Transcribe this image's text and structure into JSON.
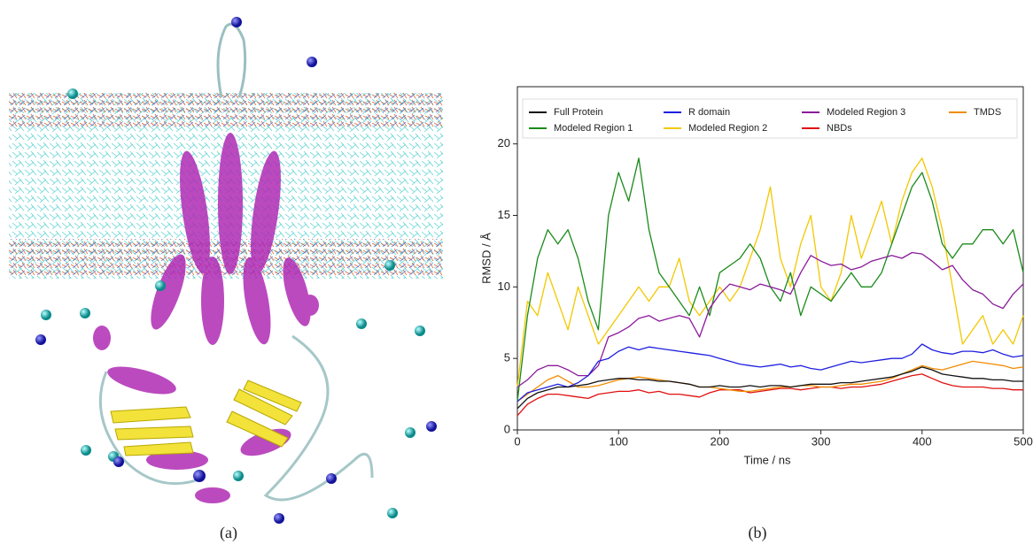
{
  "captions": [
    "(a)",
    "(b)"
  ],
  "chart_data": {
    "type": "line",
    "x_label": "Time / ns",
    "y_label": "RMSD / Å",
    "xlim": [
      0,
      500
    ],
    "ylim": [
      0,
      24
    ],
    "xticks": [
      0,
      100,
      200,
      300,
      400,
      500
    ],
    "yticks": [
      0,
      5,
      10,
      15,
      20
    ],
    "x": [
      0,
      10,
      20,
      30,
      40,
      50,
      60,
      70,
      80,
      90,
      100,
      110,
      120,
      130,
      140,
      150,
      160,
      170,
      180,
      190,
      200,
      210,
      220,
      230,
      240,
      250,
      260,
      270,
      280,
      290,
      300,
      310,
      320,
      330,
      340,
      350,
      360,
      370,
      380,
      390,
      400,
      410,
      420,
      430,
      440,
      450,
      460,
      470,
      480,
      490,
      500
    ],
    "series": [
      {
        "name": "Full Protein",
        "color": "#111111",
        "values": [
          1.5,
          2.2,
          2.6,
          2.8,
          3.0,
          3.0,
          3.1,
          3.2,
          3.4,
          3.5,
          3.6,
          3.6,
          3.5,
          3.5,
          3.4,
          3.4,
          3.3,
          3.2,
          3.0,
          3.0,
          3.1,
          3.0,
          3.0,
          3.1,
          3.0,
          3.1,
          3.1,
          3.0,
          3.1,
          3.2,
          3.2,
          3.2,
          3.3,
          3.3,
          3.4,
          3.5,
          3.6,
          3.7,
          3.9,
          4.1,
          4.4,
          4.2,
          3.9,
          3.8,
          3.7,
          3.6,
          3.6,
          3.5,
          3.5,
          3.4,
          3.4
        ]
      },
      {
        "name": "R domain",
        "color": "#1f1fe0",
        "values": [
          2.0,
          2.6,
          2.8,
          3.0,
          3.2,
          3.0,
          3.3,
          3.8,
          4.8,
          5.0,
          5.5,
          5.8,
          5.6,
          5.8,
          5.7,
          5.6,
          5.5,
          5.4,
          5.3,
          5.2,
          5.0,
          4.8,
          4.6,
          4.5,
          4.4,
          4.5,
          4.6,
          4.4,
          4.5,
          4.3,
          4.2,
          4.4,
          4.6,
          4.8,
          4.7,
          4.8,
          4.9,
          5.0,
          5.0,
          5.3,
          6.0,
          5.6,
          5.4,
          5.3,
          5.5,
          5.5,
          5.4,
          5.6,
          5.3,
          5.1,
          5.2
        ]
      },
      {
        "name": "Modeled Region 3",
        "color": "#8b1a9b",
        "values": [
          3.0,
          3.5,
          4.2,
          4.5,
          4.5,
          4.2,
          3.8,
          3.8,
          4.5,
          6.5,
          6.8,
          7.2,
          7.8,
          8.0,
          7.6,
          7.8,
          8.0,
          7.8,
          6.5,
          8.5,
          9.5,
          10.2,
          10.0,
          9.8,
          10.2,
          10.0,
          9.8,
          9.5,
          11.0,
          12.2,
          11.8,
          11.5,
          11.6,
          11.2,
          11.4,
          11.8,
          12.0,
          12.2,
          12.0,
          12.4,
          12.3,
          11.8,
          11.2,
          11.5,
          10.5,
          9.8,
          9.5,
          8.8,
          8.5,
          9.5,
          10.2
        ]
      },
      {
        "name": "TMDS",
        "color": "#f08c00",
        "values": [
          2.0,
          2.5,
          3.0,
          3.5,
          3.8,
          3.4,
          3.0,
          3.0,
          3.1,
          3.3,
          3.5,
          3.6,
          3.7,
          3.6,
          3.5,
          3.4,
          3.3,
          3.2,
          3.0,
          3.0,
          2.9,
          2.8,
          2.7,
          2.7,
          2.8,
          2.9,
          3.0,
          3.0,
          3.1,
          3.1,
          3.0,
          3.0,
          3.1,
          3.2,
          3.2,
          3.3,
          3.4,
          3.6,
          3.9,
          4.2,
          4.5,
          4.3,
          4.2,
          4.4,
          4.6,
          4.8,
          4.7,
          4.6,
          4.5,
          4.3,
          4.4
        ]
      },
      {
        "name": "Modeled Region 1",
        "color": "#1a8a1a",
        "values": [
          2,
          8,
          12,
          14,
          13,
          14,
          12,
          9,
          7,
          15,
          18,
          16,
          19,
          14,
          11,
          10,
          9,
          8,
          10,
          8,
          11,
          11.5,
          12,
          13,
          12,
          10,
          9,
          11,
          8,
          10,
          9.5,
          9,
          10,
          11,
          10,
          10,
          11,
          13,
          15,
          17,
          18,
          16,
          13,
          12,
          13,
          13,
          14,
          14,
          13,
          14,
          11
        ]
      },
      {
        "name": "Modeled Region 2",
        "color": "#f2c800",
        "values": [
          3,
          9,
          8,
          11,
          9,
          7,
          10,
          8,
          6,
          7,
          8,
          9,
          10,
          9,
          10,
          10,
          12,
          9,
          8,
          9,
          10,
          9,
          10,
          12,
          14,
          17,
          12,
          10,
          13,
          15,
          10,
          9,
          11,
          15,
          12,
          14,
          16,
          13,
          16,
          18,
          19,
          17,
          14,
          10,
          6,
          7,
          8,
          6,
          7,
          6,
          8
        ]
      },
      {
        "name": "NBDs",
        "color": "#e01010",
        "values": [
          1.0,
          1.8,
          2.2,
          2.5,
          2.5,
          2.4,
          2.3,
          2.2,
          2.5,
          2.6,
          2.7,
          2.7,
          2.8,
          2.6,
          2.7,
          2.5,
          2.5,
          2.4,
          2.3,
          2.6,
          2.8,
          2.8,
          2.8,
          2.6,
          2.7,
          2.8,
          2.9,
          2.9,
          2.8,
          2.9,
          3.0,
          3.0,
          2.9,
          3.0,
          3.0,
          3.1,
          3.2,
          3.4,
          3.6,
          3.8,
          3.9,
          3.6,
          3.3,
          3.1,
          3.0,
          3.0,
          3.0,
          2.9,
          2.9,
          2.8,
          2.8
        ]
      }
    ]
  }
}
